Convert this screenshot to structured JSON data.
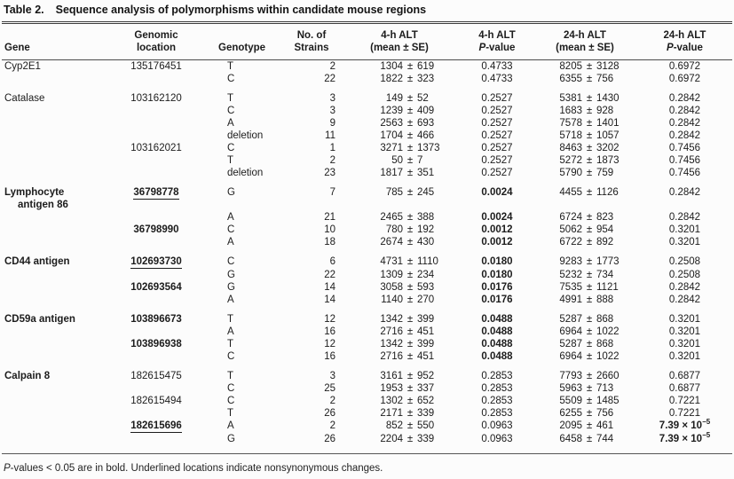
{
  "caption": {
    "label": "Table 2.",
    "title": "Sequence analysis of polymorphisms within candidate mouse regions"
  },
  "sym": {
    "pm": "±"
  },
  "header": {
    "gene": "Gene",
    "location": [
      "Genomic",
      "location"
    ],
    "genotype": "Genotype",
    "strains": [
      "No. of",
      "Strains"
    ],
    "alt4": [
      "4-h ALT",
      "(mean ± SE)"
    ],
    "p4": {
      "l1": "4-h ALT",
      "italic": "P",
      "rest": "-value"
    },
    "alt24": [
      "24-h ALT",
      "(mean ± SE)"
    ],
    "p24": {
      "l1": "24-h ALT",
      "italic": "P",
      "rest": "-value"
    }
  },
  "rows": [
    {
      "g": "Cyp2E1",
      "loc": "135176451",
      "gt": "T",
      "n": "2",
      "m4": "1304",
      "s4": "619",
      "p4": "0.4733",
      "m24": "8205",
      "s24": "3128",
      "p24": "0.6972"
    },
    {
      "gt": "C",
      "n": "22",
      "m4": "1822",
      "s4": "323",
      "p4": "0.4733",
      "m24": "6355",
      "s24": "756",
      "p24": "0.6972"
    },
    {
      "gap": true,
      "g": "Catalase",
      "loc": "103162120",
      "gt": "T",
      "n": "3",
      "m4": "149",
      "s4": "52",
      "p4": "0.2527",
      "m24": "5381",
      "s24": "1430",
      "p24": "0.2842"
    },
    {
      "gt": "C",
      "n": "3",
      "m4": "1239",
      "s4": "409",
      "p4": "0.2527",
      "m24": "1683",
      "s24": "928",
      "p24": "0.2842"
    },
    {
      "gt": "A",
      "n": "9",
      "m4": "2563",
      "s4": "693",
      "p4": "0.2527",
      "m24": "7578",
      "s24": "1401",
      "p24": "0.2842"
    },
    {
      "gt": "deletion",
      "n": "11",
      "m4": "1704",
      "s4": "466",
      "p4": "0.2527",
      "m24": "5718",
      "s24": "1057",
      "p24": "0.2842"
    },
    {
      "loc": "103162021",
      "gt": "C",
      "n": "1",
      "m4": "3271",
      "s4": "1373",
      "p4": "0.2527",
      "m24": "8463",
      "s24": "3202",
      "p24": "0.7456"
    },
    {
      "gt": "T",
      "n": "2",
      "m4": "50",
      "s4": "7",
      "p4": "0.2527",
      "m24": "5272",
      "s24": "1873",
      "p24": "0.7456"
    },
    {
      "gt": "deletion",
      "n": "23",
      "m4": "1817",
      "s4": "351",
      "p4": "0.2527",
      "m24": "5790",
      "s24": "759",
      "p24": "0.7456"
    },
    {
      "gap": true,
      "g": "Lymphocyte",
      "g2": "antigen 86",
      "gB": true,
      "loc": "36798778",
      "locB": true,
      "locU": true,
      "gt": "G",
      "n": "7",
      "m4": "785",
      "s4": "245",
      "p4": "0.0024",
      "p4B": true,
      "m24": "4455",
      "s24": "1126",
      "p24": "0.2842"
    },
    {
      "gt": "A",
      "n": "21",
      "m4": "2465",
      "s4": "388",
      "p4": "0.0024",
      "p4B": true,
      "m24": "6724",
      "s24": "823",
      "p24": "0.2842"
    },
    {
      "loc": "36798990",
      "locB": true,
      "gt": "C",
      "n": "10",
      "m4": "780",
      "s4": "192",
      "p4": "0.0012",
      "p4B": true,
      "m24": "5062",
      "s24": "954",
      "p24": "0.3201"
    },
    {
      "gt": "A",
      "n": "18",
      "m4": "2674",
      "s4": "430",
      "p4": "0.0012",
      "p4B": true,
      "m24": "6722",
      "s24": "892",
      "p24": "0.3201"
    },
    {
      "gap": true,
      "g": "CD44 antigen",
      "gB": true,
      "loc": "102693730",
      "locB": true,
      "locU": true,
      "gt": "C",
      "n": "6",
      "m4": "4731",
      "s4": "1110",
      "p4": "0.0180",
      "p4B": true,
      "m24": "9283",
      "s24": "1773",
      "p24": "0.2508"
    },
    {
      "gt": "G",
      "n": "22",
      "m4": "1309",
      "s4": "234",
      "p4": "0.0180",
      "p4B": true,
      "m24": "5232",
      "s24": "734",
      "p24": "0.2508"
    },
    {
      "loc": "102693564",
      "locB": true,
      "gt": "G",
      "n": "14",
      "m4": "3058",
      "s4": "593",
      "p4": "0.0176",
      "p4B": true,
      "m24": "7535",
      "s24": "1121",
      "p24": "0.2842"
    },
    {
      "gt": "A",
      "n": "14",
      "m4": "1140",
      "s4": "270",
      "p4": "0.0176",
      "p4B": true,
      "m24": "4991",
      "s24": "888",
      "p24": "0.2842"
    },
    {
      "gap": true,
      "g": "CD59a antigen",
      "gB": true,
      "loc": "103896673",
      "locB": true,
      "gt": "T",
      "n": "12",
      "m4": "1342",
      "s4": "399",
      "p4": "0.0488",
      "p4B": true,
      "m24": "5287",
      "s24": "868",
      "p24": "0.3201"
    },
    {
      "gt": "A",
      "n": "16",
      "m4": "2716",
      "s4": "451",
      "p4": "0.0488",
      "p4B": true,
      "m24": "6964",
      "s24": "1022",
      "p24": "0.3201"
    },
    {
      "loc": "103896938",
      "locB": true,
      "gt": "T",
      "n": "12",
      "m4": "1342",
      "s4": "399",
      "p4": "0.0488",
      "p4B": true,
      "m24": "5287",
      "s24": "868",
      "p24": "0.3201"
    },
    {
      "gt": "C",
      "n": "16",
      "m4": "2716",
      "s4": "451",
      "p4": "0.0488",
      "p4B": true,
      "m24": "6964",
      "s24": "1022",
      "p24": "0.3201"
    },
    {
      "gap": true,
      "g": "Calpain 8",
      "gB": true,
      "loc": "182615475",
      "gt": "T",
      "n": "3",
      "m4": "3161",
      "s4": "952",
      "p4": "0.2853",
      "m24": "7793",
      "s24": "2660",
      "p24": "0.6877"
    },
    {
      "gt": "C",
      "n": "25",
      "m4": "1953",
      "s4": "337",
      "p4": "0.2853",
      "m24": "5963",
      "s24": "713",
      "p24": "0.6877"
    },
    {
      "loc": "182615494",
      "gt": "C",
      "n": "2",
      "m4": "1302",
      "s4": "652",
      "p4": "0.2853",
      "m24": "5509",
      "s24": "1485",
      "p24": "0.7221"
    },
    {
      "gt": "T",
      "n": "26",
      "m4": "2171",
      "s4": "339",
      "p4": "0.2853",
      "m24": "6255",
      "s24": "756",
      "p24": "0.7221"
    },
    {
      "loc": "182615696",
      "locB": true,
      "locU": true,
      "gt": "A",
      "n": "2",
      "m4": "852",
      "s4": "550",
      "p4": "0.0963",
      "m24": "2095",
      "s24": "461",
      "p24": "7.39 × 10",
      "p24sup": "−5",
      "p24B": true
    },
    {
      "gt": "G",
      "n": "26",
      "m4": "2204",
      "s4": "339",
      "p4": "0.0963",
      "m24": "6458",
      "s24": "744",
      "p24": "7.39 × 10",
      "p24sup": "−5",
      "p24B": true
    }
  ],
  "footnote": {
    "italic": "P",
    "rest": "-values < 0.05 are in bold. Underlined locations indicate nonsynonymous changes."
  }
}
